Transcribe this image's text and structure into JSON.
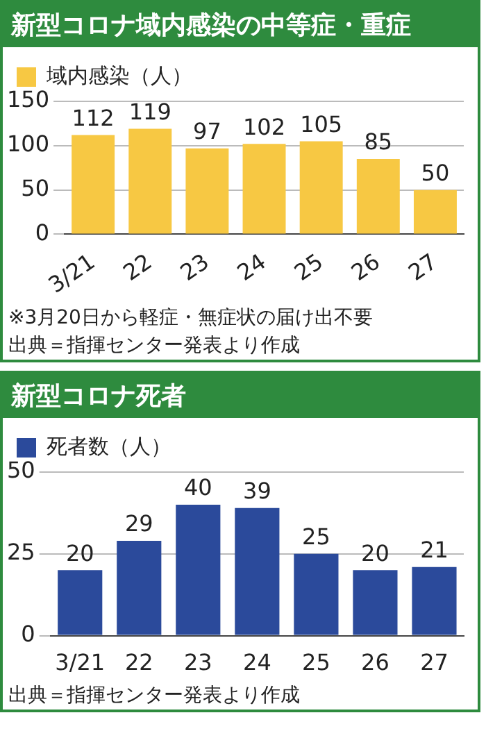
{
  "chart_data": [
    {
      "type": "bar",
      "title": "新型コロナ域内感染の中等症・重症",
      "categories": [
        "3/21",
        "22",
        "23",
        "24",
        "25",
        "26",
        "27"
      ],
      "series": [
        {
          "name": "域内感染（人）",
          "color": "#f7c843",
          "values": [
            112,
            119,
            97,
            102,
            105,
            85,
            50
          ]
        }
      ],
      "ylim": [
        0,
        150
      ],
      "yticks": [
        0,
        50,
        100,
        150
      ],
      "grid": "y",
      "legend": "top left",
      "data_labels": true,
      "annotations": [
        "※3月20日から軽症・無症状の届け出不要",
        "出典＝指揮センター発表より作成"
      ]
    },
    {
      "type": "bar",
      "title": "新型コロナ死者",
      "categories": [
        "3/21",
        "22",
        "23",
        "24",
        "25",
        "26",
        "27"
      ],
      "series": [
        {
          "name": "死者数（人）",
          "color": "#2b4a9b",
          "values": [
            20,
            29,
            40,
            39,
            25,
            20,
            21
          ]
        }
      ],
      "ylim": [
        0,
        50
      ],
      "yticks": [
        0,
        25,
        50
      ],
      "grid": "y",
      "legend": "top left",
      "data_labels": true,
      "annotations": [
        "出典＝指揮センター発表より作成"
      ]
    }
  ]
}
